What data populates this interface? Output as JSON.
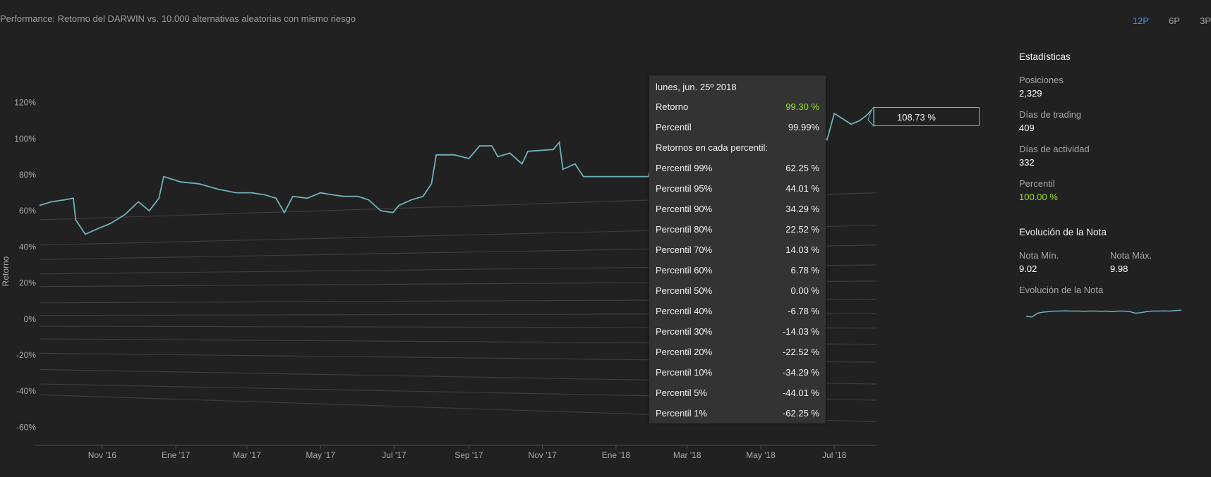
{
  "header": {
    "title": "Performance: Retorno del DARWIN vs. 10.000 alternativas aleatorias con mismo riesgo",
    "periods": [
      {
        "label": "12P",
        "active": true
      },
      {
        "label": "6P",
        "active": false
      },
      {
        "label": "3P",
        "active": false
      }
    ]
  },
  "chart_data": {
    "type": "line",
    "ylabel": "Retorno",
    "ylim": [
      -70,
      130
    ],
    "yticks": [
      -60,
      -40,
      -20,
      0,
      20,
      40,
      60,
      80,
      100,
      120
    ],
    "ytick_labels": [
      "-60%",
      "-40%",
      "-20%",
      "0%",
      "20%",
      "40%",
      "60%",
      "80%",
      "100%",
      "120%"
    ],
    "xlim": [
      "2016-09-10",
      "2018-08-05"
    ],
    "xticks": [
      {
        "date": "2016-11-01",
        "label": "Nov '16"
      },
      {
        "date": "2017-01-01",
        "label": "Ene '17"
      },
      {
        "date": "2017-03-01",
        "label": "Mar '17"
      },
      {
        "date": "2017-05-01",
        "label": "May '17"
      },
      {
        "date": "2017-07-01",
        "label": "Jul '17"
      },
      {
        "date": "2017-09-01",
        "label": "Sep '17"
      },
      {
        "date": "2017-11-01",
        "label": "Nov '17"
      },
      {
        "date": "2018-01-01",
        "label": "Ene '18"
      },
      {
        "date": "2018-03-01",
        "label": "Mar '18"
      },
      {
        "date": "2018-05-01",
        "label": "May '18"
      },
      {
        "date": "2018-07-01",
        "label": "Jul '18"
      }
    ],
    "series": [
      {
        "role": "darwin",
        "color": "#6fb1b8",
        "points": [
          [
            "2016-09-10",
            63
          ],
          [
            "2016-09-20",
            65
          ],
          [
            "2016-09-30",
            66
          ],
          [
            "2016-10-08",
            67
          ],
          [
            "2016-10-10",
            55
          ],
          [
            "2016-10-18",
            47
          ],
          [
            "2016-10-28",
            50
          ],
          [
            "2016-11-08",
            53
          ],
          [
            "2016-11-20",
            58
          ],
          [
            "2016-12-01",
            65
          ],
          [
            "2016-12-10",
            60
          ],
          [
            "2016-12-18",
            67
          ],
          [
            "2016-12-22",
            79
          ],
          [
            "2017-01-05",
            76
          ],
          [
            "2017-01-20",
            75
          ],
          [
            "2017-02-05",
            72
          ],
          [
            "2017-02-20",
            70
          ],
          [
            "2017-03-05",
            70
          ],
          [
            "2017-03-15",
            69
          ],
          [
            "2017-03-25",
            67
          ],
          [
            "2017-04-01",
            59
          ],
          [
            "2017-04-08",
            68
          ],
          [
            "2017-04-20",
            67
          ],
          [
            "2017-05-01",
            70
          ],
          [
            "2017-05-10",
            69
          ],
          [
            "2017-05-20",
            68
          ],
          [
            "2017-06-01",
            68
          ],
          [
            "2017-06-10",
            66
          ],
          [
            "2017-06-20",
            60
          ],
          [
            "2017-06-30",
            59
          ],
          [
            "2017-07-05",
            63
          ],
          [
            "2017-07-15",
            66
          ],
          [
            "2017-07-25",
            68
          ],
          [
            "2017-08-01",
            75
          ],
          [
            "2017-08-05",
            91
          ],
          [
            "2017-08-20",
            91
          ],
          [
            "2017-09-01",
            89
          ],
          [
            "2017-09-10",
            96
          ],
          [
            "2017-09-20",
            96
          ],
          [
            "2017-09-25",
            90
          ],
          [
            "2017-10-05",
            92
          ],
          [
            "2017-10-15",
            86
          ],
          [
            "2017-10-20",
            93
          ],
          [
            "2017-11-10",
            94
          ],
          [
            "2017-11-15",
            98
          ],
          [
            "2017-11-18",
            83
          ],
          [
            "2017-11-28",
            86
          ],
          [
            "2017-12-05",
            79
          ],
          [
            "2017-12-20",
            79
          ],
          [
            "2018-01-01",
            79
          ],
          [
            "2018-01-15",
            79
          ],
          [
            "2018-01-28",
            79
          ],
          [
            "2018-02-01",
            91
          ],
          [
            "2018-02-10",
            92
          ],
          [
            "2018-02-20",
            84
          ],
          [
            "2018-02-25",
            86
          ],
          [
            "2018-03-10",
            88
          ],
          [
            "2018-03-25",
            90
          ],
          [
            "2018-04-10",
            92
          ],
          [
            "2018-04-25",
            94
          ],
          [
            "2018-05-10",
            96
          ],
          [
            "2018-05-25",
            98
          ],
          [
            "2018-06-10",
            99
          ],
          [
            "2018-06-20",
            103
          ],
          [
            "2018-06-25",
            99.3
          ],
          [
            "2018-07-01",
            114
          ],
          [
            "2018-07-08",
            111
          ],
          [
            "2018-07-15",
            108
          ],
          [
            "2018-07-22",
            110
          ],
          [
            "2018-07-28",
            113
          ],
          [
            "2018-08-01",
            116
          ]
        ]
      },
      {
        "role": "percentile",
        "name": "Percentil 99%",
        "color": "#3c3c3c",
        "points": [
          [
            "2016-09-10",
            55
          ],
          [
            "2018-08-05",
            70
          ]
        ]
      },
      {
        "role": "percentile",
        "name": "Percentil 95%",
        "color": "#3c3c3c",
        "points": [
          [
            "2016-09-10",
            41
          ],
          [
            "2018-08-05",
            52
          ]
        ]
      },
      {
        "role": "percentile",
        "name": "Percentil 90%",
        "color": "#3c3c3c",
        "points": [
          [
            "2016-09-10",
            33
          ],
          [
            "2018-08-05",
            41
          ]
        ]
      },
      {
        "role": "percentile",
        "name": "Percentil 80%",
        "color": "#3c3c3c",
        "points": [
          [
            "2016-09-10",
            25
          ],
          [
            "2018-08-05",
            30
          ]
        ]
      },
      {
        "role": "percentile",
        "name": "Percentil 70%",
        "color": "#3c3c3c",
        "points": [
          [
            "2016-09-10",
            18
          ],
          [
            "2018-08-05",
            21
          ]
        ]
      },
      {
        "role": "percentile",
        "name": "Percentil 60%",
        "color": "#3c3c3c",
        "points": [
          [
            "2016-09-10",
            9
          ],
          [
            "2018-08-05",
            11
          ]
        ]
      },
      {
        "role": "percentile",
        "name": "Percentil 50%",
        "color": "#3c3c3c",
        "points": [
          [
            "2016-09-10",
            2
          ],
          [
            "2018-08-05",
            3
          ]
        ]
      },
      {
        "role": "percentile",
        "name": "Percentil 40%",
        "color": "#3c3c3c",
        "points": [
          [
            "2016-09-10",
            -4
          ],
          [
            "2018-08-05",
            -5
          ]
        ]
      },
      {
        "role": "percentile",
        "name": "Percentil 30%",
        "color": "#3c3c3c",
        "points": [
          [
            "2016-09-10",
            -11
          ],
          [
            "2018-08-05",
            -14
          ]
        ]
      },
      {
        "role": "percentile",
        "name": "Percentil 20%",
        "color": "#3c3c3c",
        "points": [
          [
            "2016-09-10",
            -19
          ],
          [
            "2018-08-05",
            -24
          ]
        ]
      },
      {
        "role": "percentile",
        "name": "Percentil 10%",
        "color": "#3c3c3c",
        "points": [
          [
            "2016-09-10",
            -28
          ],
          [
            "2018-08-05",
            -36
          ]
        ]
      },
      {
        "role": "percentile",
        "name": "Percentil 5%",
        "color": "#3c3c3c",
        "points": [
          [
            "2016-09-10",
            -36
          ],
          [
            "2018-08-05",
            -45
          ]
        ]
      },
      {
        "role": "percentile",
        "name": "Percentil 1%",
        "color": "#3c3c3c",
        "points": [
          [
            "2016-09-10",
            -42
          ],
          [
            "2018-08-05",
            -57
          ]
        ]
      }
    ],
    "grid": false,
    "legend": "none"
  },
  "tooltip": {
    "date": "lunes, jun. 25º 2018",
    "retorno_label": "Retorno",
    "retorno_value": "99.30 %",
    "percentil_label": "Percentil",
    "percentil_value": "99.99%",
    "section_label": "Retornos en cada percentil:",
    "rows": [
      {
        "label": "Percentil 99%",
        "value": "62.25 %"
      },
      {
        "label": "Percentil 95%",
        "value": "44.01 %"
      },
      {
        "label": "Percentil 90%",
        "value": "34.29 %"
      },
      {
        "label": "Percentil 80%",
        "value": "22.52 %"
      },
      {
        "label": "Percentil 70%",
        "value": "14.03 %"
      },
      {
        "label": "Percentil 60%",
        "value": "6.78 %"
      },
      {
        "label": "Percentil 50%",
        "value": "0.00 %"
      },
      {
        "label": "Percentil 40%",
        "value": "-6.78 %"
      },
      {
        "label": "Percentil 30%",
        "value": "-14.03 %"
      },
      {
        "label": "Percentil 20%",
        "value": "-22.52 %"
      },
      {
        "label": "Percentil 10%",
        "value": "-34.29 %"
      },
      {
        "label": "Percentil 5%",
        "value": "-44.01 %"
      },
      {
        "label": "Percentil 1%",
        "value": "-62.25 %"
      }
    ]
  },
  "callout": {
    "value": "108.73 %"
  },
  "stats": {
    "heading": "Estadísticas",
    "posiciones_label": "Posiciones",
    "posiciones_value": "2,329",
    "dias_trading_label": "Días de trading",
    "dias_trading_value": "409",
    "dias_actividad_label": "Días de actividad",
    "dias_actividad_value": "332",
    "percentil_label": "Percentil",
    "percentil_value": "100.00 %",
    "nota_heading": "Evolución de la Nota",
    "nota_min_label": "Nota Mín.",
    "nota_min_value": "9.02",
    "nota_max_label": "Nota Máx.",
    "nota_max_value": "9.98",
    "nota_chart_label": "Evolución de la Nota",
    "nota_series": [
      9.1,
      9.02,
      9.4,
      9.5,
      9.55,
      9.6,
      9.6,
      9.62,
      9.6,
      9.6,
      9.58,
      9.6,
      9.6,
      9.58,
      9.6,
      9.55,
      9.6,
      9.6,
      9.55,
      9.4,
      9.45,
      9.55,
      9.6,
      9.6,
      9.62,
      9.6,
      9.65,
      9.7
    ]
  }
}
